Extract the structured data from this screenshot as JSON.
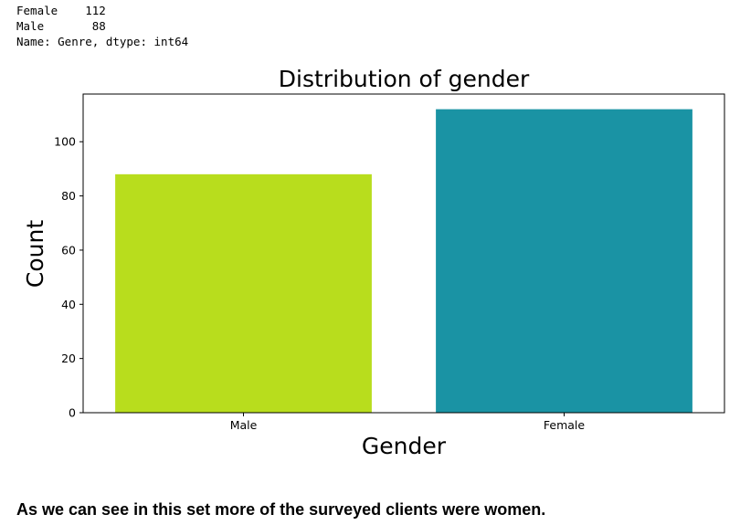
{
  "output": {
    "lines": [
      "Female    112",
      "Male       88",
      "Name: Genre, dtype: int64"
    ]
  },
  "chart_data": {
    "type": "bar",
    "title": "Distribution of gender",
    "xlabel": "Gender",
    "ylabel": "Count",
    "categories": [
      "Male",
      "Female"
    ],
    "values": [
      88,
      112
    ],
    "colors": [
      "#b8dd1d",
      "#1a93a4"
    ],
    "ylim": [
      0,
      117.6
    ],
    "yticks": [
      0,
      20,
      40,
      60,
      80,
      100
    ],
    "grid": false
  },
  "commentary": "As we can see in this set more of the surveyed clients were women."
}
